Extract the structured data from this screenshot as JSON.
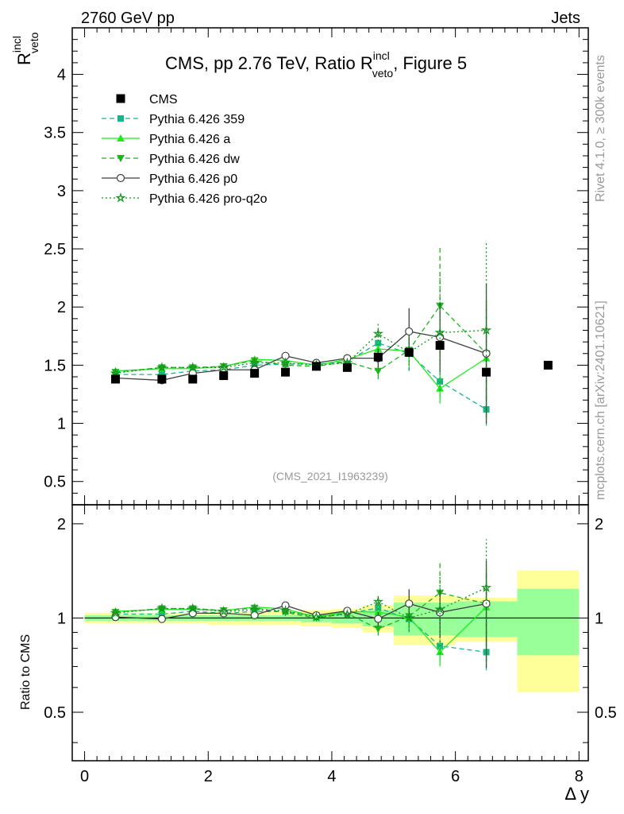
{
  "header": {
    "left": "2760 GeV pp",
    "right": "Jets",
    "title_main": "CMS, pp 2.76 TeV, Ratio R",
    "title_sup": "incl",
    "title_sub": "veto",
    "title_tail": ", Figure 5",
    "side_top": "Rivet 4.1.0, ≥ 300k events",
    "side_bottom": "mcplots.cern.ch [arXiv:2401.10621]",
    "analysis_id": "(CMS_2021_I1963239)"
  },
  "axes": {
    "ylabel_main": "R",
    "ylabel_sup": "incl",
    "ylabel_sub": "veto",
    "ylabel_ratio": "Ratio to CMS",
    "xlabel": "Δ y",
    "xlim": [
      -0.2,
      8.15
    ],
    "ylim_main": [
      0.3,
      4.4
    ],
    "ylim_ratio": [
      0.35,
      2.3
    ],
    "yticks_main": [
      "0.5",
      "1",
      "1.5",
      "2",
      "2.5",
      "3",
      "3.5",
      "4"
    ],
    "yticks_ratio": [
      "0.5",
      "1",
      "2"
    ],
    "xticks": [
      "0",
      "2",
      "4",
      "6",
      "8"
    ]
  },
  "colors": {
    "cms": "#000000",
    "p359": "#19b48c",
    "pa": "#1eeb1e",
    "pdw": "#1eb41e",
    "pp0": "#404040",
    "pq2o": "#14961e",
    "band_inner": "#99ff99",
    "band_outer": "#ffff99"
  },
  "chart_data": {
    "type": "scatter",
    "title": "CMS, pp 2.76 TeV, Ratio R_veto^incl, Figure 5",
    "xlabel": "Δ y",
    "ylabel": "R_veto^incl",
    "legend_position": "top-left",
    "x": [
      0.5,
      1.25,
      1.75,
      2.25,
      2.75,
      3.25,
      3.75,
      4.25,
      4.75,
      5.25,
      5.75,
      6.5,
      7.5
    ],
    "data": {
      "name": "CMS",
      "values": [
        1.38,
        1.38,
        1.38,
        1.41,
        1.43,
        1.44,
        1.49,
        1.48,
        1.57,
        1.61,
        1.67,
        1.44,
        1.5
      ],
      "band_bins": [
        [
          0.0,
          1.0
        ],
        [
          1.0,
          1.5
        ],
        [
          1.5,
          2.0
        ],
        [
          2.0,
          2.5
        ],
        [
          2.5,
          3.0
        ],
        [
          3.0,
          3.5
        ],
        [
          3.5,
          4.0
        ],
        [
          4.0,
          4.5
        ],
        [
          4.5,
          5.0
        ],
        [
          5.0,
          5.5
        ],
        [
          5.5,
          6.0
        ],
        [
          6.0,
          7.0
        ],
        [
          7.0,
          8.0
        ]
      ],
      "band_inner_rel": [
        0.02,
        0.02,
        0.02,
        0.02,
        0.02,
        0.02,
        0.03,
        0.04,
        0.06,
        0.12,
        0.12,
        0.13,
        0.24
      ],
      "band_outer_rel": [
        0.04,
        0.04,
        0.04,
        0.05,
        0.05,
        0.05,
        0.06,
        0.07,
        0.1,
        0.18,
        0.18,
        0.16,
        0.42
      ]
    },
    "series": [
      {
        "name": "Pythia 6.426 359",
        "key": "p359",
        "style": "dashed",
        "marker": "square",
        "values": [
          1.42,
          1.42,
          1.45,
          1.46,
          1.5,
          1.51,
          1.51,
          1.53,
          1.69,
          1.6,
          1.36,
          1.12
        ],
        "errors": [
          0.01,
          0.01,
          0.01,
          0.01,
          0.02,
          0.02,
          0.02,
          0.03,
          0.08,
          0.15,
          0.14,
          0.14
        ]
      },
      {
        "name": "Pythia 6.426 a",
        "key": "pa",
        "style": "solid",
        "marker": "triangle-up",
        "values": [
          1.45,
          1.47,
          1.47,
          1.49,
          1.55,
          1.54,
          1.5,
          1.55,
          1.64,
          1.62,
          1.3,
          1.56
        ],
        "errors": [
          0.01,
          0.01,
          0.01,
          0.01,
          0.02,
          0.02,
          0.02,
          0.03,
          0.08,
          0.12,
          0.13,
          0.5
        ]
      },
      {
        "name": "Pythia 6.426 dw",
        "key": "pdw",
        "style": "dashed",
        "marker": "triangle-down",
        "values": [
          1.44,
          1.48,
          1.48,
          1.49,
          1.54,
          1.5,
          1.49,
          1.53,
          1.45,
          1.63,
          2.01,
          1.6
        ],
        "errors": [
          0.01,
          0.01,
          0.01,
          0.01,
          0.02,
          0.02,
          0.02,
          0.03,
          0.07,
          0.13,
          0.5,
          0.4
        ]
      },
      {
        "name": "Pythia 6.426 p0",
        "key": "pp0",
        "style": "solid",
        "marker": "circle-open",
        "values": [
          1.39,
          1.37,
          1.43,
          1.46,
          1.46,
          1.58,
          1.52,
          1.56,
          1.56,
          1.79,
          1.74,
          1.6
        ],
        "errors": [
          0.01,
          0.01,
          0.01,
          0.01,
          0.02,
          0.02,
          0.02,
          0.03,
          0.08,
          0.2,
          0.3,
          0.6
        ]
      },
      {
        "name": "Pythia 6.426 pro-q2o",
        "key": "pq2o",
        "style": "dotted",
        "marker": "star",
        "values": [
          1.43,
          1.48,
          1.48,
          1.48,
          1.52,
          1.52,
          1.5,
          1.52,
          1.77,
          1.61,
          1.78,
          1.8
        ],
        "errors": [
          0.01,
          0.01,
          0.01,
          0.01,
          0.02,
          0.02,
          0.02,
          0.03,
          0.1,
          0.15,
          0.5,
          0.77
        ]
      }
    ]
  }
}
